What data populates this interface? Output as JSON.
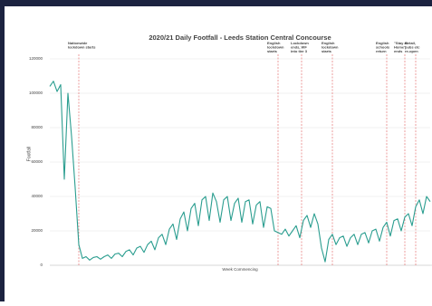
{
  "chart_data": {
    "type": "line",
    "title": "2020/21 Daily Footfall - Leeds Station Central Concourse",
    "y_label": "Footfall",
    "x_label": "Week Commencing",
    "categories": [
      null,
      null,
      null,
      null,
      null,
      null,
      null,
      null,
      null,
      null,
      null,
      null,
      null,
      null,
      null,
      null,
      null,
      null,
      null,
      null,
      null,
      null,
      null,
      null,
      null,
      null,
      null,
      null,
      null,
      null,
      null,
      null,
      null,
      null,
      null,
      null,
      null,
      null,
      null,
      null,
      null,
      null,
      null,
      null,
      null,
      null,
      null,
      null,
      null,
      null,
      null,
      null,
      null,
      null,
      null,
      null,
      null,
      null,
      null,
      null,
      null,
      null,
      null,
      null,
      null,
      null,
      null,
      null,
      null,
      null,
      null,
      null,
      null,
      null,
      null,
      null,
      null,
      null,
      null,
      null,
      null,
      null,
      null,
      null,
      null,
      null,
      null,
      null,
      null,
      null,
      null,
      null,
      null,
      null,
      null,
      null,
      null,
      null,
      null,
      null,
      null,
      null,
      null,
      null,
      null,
      null
    ],
    "series": [
      {
        "name": "Footfall",
        "color": "#2a9d8f",
        "values": [
          104000,
          107000,
          101000,
          105000,
          50000,
          100000,
          75000,
          45000,
          12000,
          4000,
          5000,
          3000,
          4500,
          5000,
          3500,
          5000,
          6000,
          4000,
          6500,
          7000,
          5000,
          8000,
          9000,
          6000,
          10000,
          11000,
          7500,
          12000,
          14000,
          9000,
          16000,
          18000,
          12000,
          21000,
          24000,
          15000,
          27000,
          31000,
          20000,
          33000,
          36000,
          23000,
          38000,
          40000,
          26000,
          42000,
          37000,
          25000,
          38000,
          40000,
          26000,
          36000,
          39000,
          25000,
          37000,
          38000,
          24000,
          35000,
          37000,
          22000,
          34000,
          33000,
          20000,
          19000,
          18000,
          21000,
          17000,
          20000,
          23000,
          16000,
          26000,
          29000,
          22000,
          30000,
          24000,
          10000,
          2000,
          15000,
          18000,
          12000,
          16000,
          17000,
          11000,
          16000,
          18000,
          12000,
          18000,
          19000,
          13000,
          20000,
          21000,
          14000,
          22000,
          25000,
          17000,
          26000,
          27000,
          20000,
          28000,
          30000,
          23000,
          34000,
          38000,
          30000,
          40000,
          37000
        ]
      }
    ],
    "ylim": [
      0,
      120000
    ],
    "yticks": [
      0,
      20000,
      40000,
      60000,
      80000,
      100000,
      120000
    ],
    "grid": true,
    "events": [
      {
        "x": 8,
        "lines": [
          "Nationwide",
          "lockdown starts"
        ]
      },
      {
        "x": 63,
        "lines": [
          "English",
          "lockdown",
          "starts"
        ]
      },
      {
        "x": 69.5,
        "lines": [
          "Lockdown",
          "ends, WF",
          "into tier 3"
        ]
      },
      {
        "x": 78,
        "lines": [
          "English",
          "lockdown",
          "starts"
        ]
      },
      {
        "x": 93,
        "lines": [
          "English",
          "schools",
          "return"
        ]
      },
      {
        "x": 98,
        "lines": [
          "\"Stay at",
          "Home\"",
          "ends"
        ]
      },
      {
        "x": 101,
        "lines": [
          "Retail,",
          "pubs etc",
          "re-open"
        ]
      }
    ]
  }
}
